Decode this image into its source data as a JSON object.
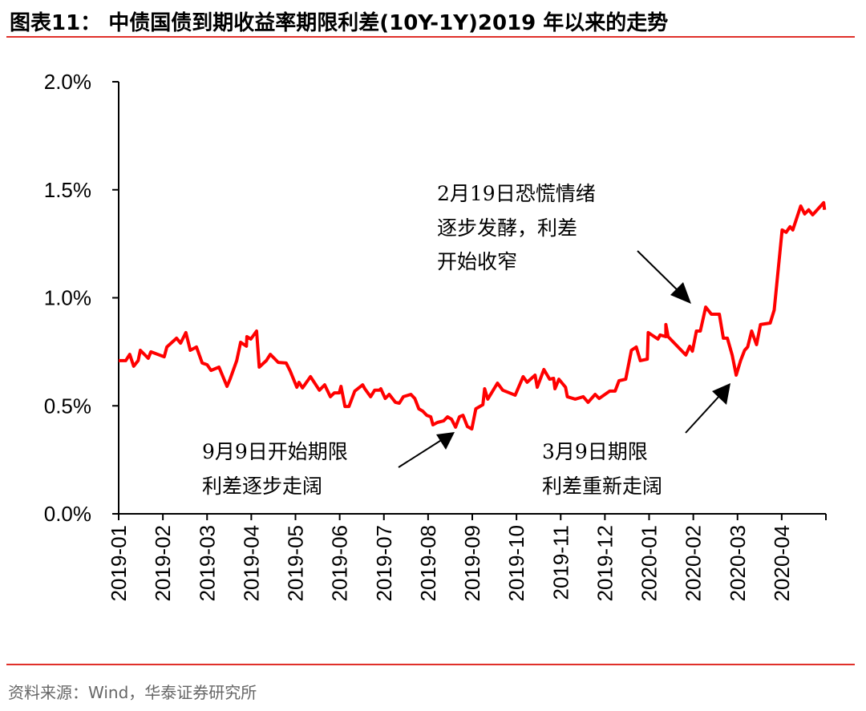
{
  "header": {
    "title": "图表11：  中债国债到期收益率期限利差(10Y-1Y)2019 年以来的走势"
  },
  "footer": {
    "source": "资料来源：Wind，华泰证券研究所"
  },
  "colors": {
    "line": "#ff0000",
    "rule": "#e0302a",
    "axis": "#000000"
  },
  "chart_data": {
    "type": "line",
    "title": "中债国债到期收益率期限利差(10Y-1Y)2019 年以来的走势",
    "xlabel": "",
    "ylabel": "",
    "ylim": [
      0,
      2.0
    ],
    "xlim": [
      0,
      16
    ],
    "y_ticks": [
      0,
      0.5,
      1.0,
      1.5,
      2.0
    ],
    "y_tick_labels": [
      "0.0%",
      "0.5%",
      "1.0%",
      "1.5%",
      "2.0%"
    ],
    "x_tick_labels": [
      "2019-01",
      "2019-02",
      "2019-03",
      "2019-04",
      "2019-05",
      "2019-06",
      "2019-07",
      "2019-08",
      "2019-09",
      "2019-10",
      "2019-11",
      "2019-12",
      "2020-01",
      "2020-02",
      "2020-03",
      "2020-04"
    ],
    "x_unit": "months since 2019-01",
    "grid": false,
    "series": [
      {
        "name": "期限利差(10Y-1Y)",
        "x": [
          0.0,
          0.16,
          0.25,
          0.34,
          0.44,
          0.49,
          0.67,
          0.73,
          1.03,
          1.09,
          1.31,
          1.4,
          1.52,
          1.62,
          1.76,
          1.89,
          2.0,
          2.09,
          2.27,
          2.45,
          2.52,
          2.67,
          2.76,
          2.89,
          2.9,
          2.99,
          3.12,
          3.18,
          3.34,
          3.43,
          3.52,
          3.61,
          3.79,
          3.88,
          4.03,
          4.08,
          4.16,
          4.34,
          4.54,
          4.66,
          4.79,
          4.88,
          4.99,
          5.03,
          5.12,
          5.21,
          5.34,
          5.52,
          5.57,
          5.7,
          5.79,
          5.9,
          5.93,
          6.03,
          6.12,
          6.26,
          6.35,
          6.44,
          6.61,
          6.7,
          6.79,
          6.88,
          6.97,
          7.06,
          7.11,
          7.21,
          7.35,
          7.44,
          7.53,
          7.62,
          7.71,
          7.79,
          7.89,
          7.99,
          8.08,
          8.24,
          8.28,
          8.35,
          8.57,
          8.69,
          8.97,
          9.15,
          9.24,
          9.42,
          9.47,
          9.62,
          9.75,
          9.84,
          9.87,
          9.96,
          10.11,
          10.15,
          10.33,
          10.51,
          10.62,
          10.78,
          10.87,
          11.11,
          11.23,
          11.32,
          11.47,
          11.6,
          11.71,
          11.8,
          11.96,
          11.98,
          12.2,
          12.25,
          12.38,
          12.38,
          12.43,
          12.83,
          12.92,
          12.98,
          13.07,
          13.16,
          13.28,
          13.41,
          13.59,
          13.68,
          13.77,
          13.88,
          13.97,
          14.07,
          14.16,
          14.23,
          14.32,
          14.43,
          14.52,
          14.74,
          14.83,
          15.01,
          15.1,
          15.19,
          15.25,
          15.43,
          15.52,
          15.61,
          15.7,
          15.95,
          15.97
        ],
        "y": [
          0.709,
          0.709,
          0.738,
          0.683,
          0.709,
          0.757,
          0.72,
          0.75,
          0.727,
          0.772,
          0.813,
          0.79,
          0.839,
          0.757,
          0.772,
          0.698,
          0.69,
          0.664,
          0.679,
          0.59,
          0.623,
          0.709,
          0.794,
          0.776,
          0.82,
          0.809,
          0.846,
          0.679,
          0.709,
          0.738,
          0.72,
          0.701,
          0.698,
          0.661,
          0.586,
          0.609,
          0.583,
          0.635,
          0.572,
          0.597,
          0.542,
          0.56,
          0.56,
          0.59,
          0.497,
          0.497,
          0.568,
          0.597,
          0.579,
          0.542,
          0.572,
          0.572,
          0.579,
          0.534,
          0.553,
          0.516,
          0.512,
          0.542,
          0.553,
          0.534,
          0.486,
          0.475,
          0.456,
          0.449,
          0.412,
          0.423,
          0.43,
          0.449,
          0.438,
          0.401,
          0.449,
          0.456,
          0.404,
          0.393,
          0.486,
          0.505,
          0.579,
          0.531,
          0.605,
          0.572,
          0.549,
          0.635,
          0.609,
          0.642,
          0.586,
          0.668,
          0.623,
          0.627,
          0.579,
          0.623,
          0.586,
          0.542,
          0.531,
          0.542,
          0.516,
          0.553,
          0.534,
          0.568,
          0.568,
          0.616,
          0.623,
          0.757,
          0.772,
          0.709,
          0.716,
          0.839,
          0.809,
          0.828,
          0.82,
          0.876,
          0.82,
          0.735,
          0.776,
          0.753,
          0.846,
          0.846,
          0.957,
          0.924,
          0.924,
          0.813,
          0.813,
          0.735,
          0.642,
          0.709,
          0.757,
          0.772,
          0.846,
          0.783,
          0.876,
          0.883,
          0.943,
          1.314,
          1.303,
          1.329,
          1.314,
          1.425,
          1.388,
          1.407,
          1.384,
          1.44,
          1.407
        ]
      }
    ],
    "annotations": [
      {
        "lines": [
          "2月19日恐慌情绪",
          "逐步发酵，利差",
          "开始收窄"
        ]
      },
      {
        "lines": [
          "9月9日开始期限",
          "利差逐步走阔"
        ]
      },
      {
        "lines": [
          "3月9日期限",
          "利差重新走阔"
        ]
      }
    ]
  }
}
